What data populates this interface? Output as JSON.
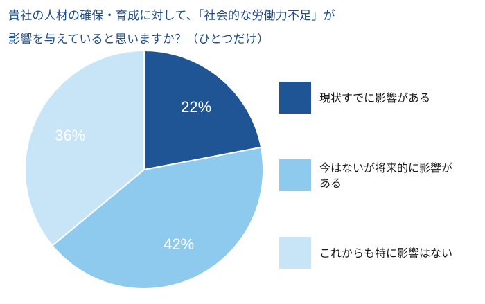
{
  "title_lines": [
    "貴社の人材の確保・育成に対して、「社会的な労働力不足」が",
    "影響を与えていると思いますか？（ひとつだけ）"
  ],
  "colors": {
    "title": "#1f4e8c",
    "slice_1": "#1f5594",
    "slice_2": "#8ecaee",
    "slice_3": "#c7e5f7",
    "data_label": "#ffffff"
  },
  "chart_data": {
    "type": "pie",
    "title": "貴社の人材の確保・育成に対して、「社会的な労働力不足」が影響を与えていると思いますか？（ひとつだけ）",
    "start": "12 o'clock, clockwise",
    "slices": [
      {
        "label": "現状すでに影響がある",
        "value": 22,
        "display": "22%",
        "color": "#1f5594"
      },
      {
        "label": "今はないが将来的に影響がある",
        "value": 42,
        "display": "42%",
        "color": "#8ecaee"
      },
      {
        "label": "これからも特に影響はない",
        "value": 36,
        "display": "36%",
        "color": "#c7e5f7"
      }
    ],
    "legend_position": "right"
  },
  "legend": [
    {
      "lines": [
        "現状すでに影響がある"
      ]
    },
    {
      "lines": [
        "今はないが将来的に影響が",
        "ある"
      ]
    },
    {
      "lines": [
        "これからも特に影響はない"
      ]
    }
  ]
}
